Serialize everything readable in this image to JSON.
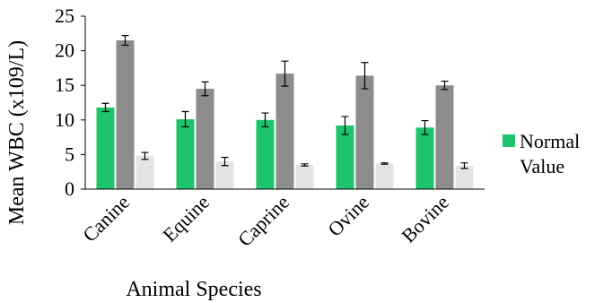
{
  "chart_data": {
    "type": "bar",
    "categories": [
      "Canine",
      "Equine",
      "Caprine",
      "Ovine",
      "Bovine"
    ],
    "series": [
      {
        "name": "Normal Value",
        "color": "#1ec46b",
        "values": [
          11.8,
          10.1,
          10.0,
          9.2,
          8.9
        ],
        "errors": [
          0.6,
          1.1,
          1.0,
          1.3,
          1.0
        ]
      },
      {
        "color": "#8c8c8c",
        "values": [
          21.5,
          14.5,
          16.7,
          16.4,
          15.0
        ],
        "errors": [
          0.7,
          1.0,
          1.8,
          1.9,
          0.6
        ]
      },
      {
        "color": "#e4e4e4",
        "values": [
          4.8,
          4.0,
          3.5,
          3.7,
          3.4
        ],
        "errors": [
          0.5,
          0.6,
          0.15,
          0.1,
          0.4
        ]
      }
    ],
    "ylabel": "Mean WBC (x109/L)",
    "xlabel": "Animal Species",
    "ylim": [
      0,
      25
    ],
    "yticks": [
      0,
      5,
      10,
      15,
      20,
      25
    ],
    "legend_position": "right"
  }
}
